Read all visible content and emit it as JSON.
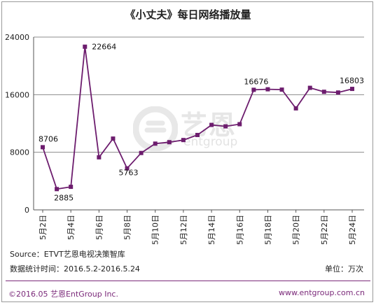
{
  "header": {
    "title": "《小丈夫》每日网络播放量"
  },
  "watermark": {
    "brand": "艺恩",
    "sub": "entgroup",
    "logo_icon": "entgroup-logo-icon"
  },
  "footer": {
    "source": "Source：ETVT艺恩电视决策智库",
    "period": "数据统计时间：2016.5.2-2016.5.24",
    "unit": "单位：万次",
    "copyright": "©2016.05 艺恩EntGroup Inc.",
    "website": "www.entgroup.com.cn"
  },
  "colors": {
    "line": "#6d1d6e",
    "marker": "#6d1d6e",
    "grid": "#8c8c8c",
    "accent": "#7b2a7a"
  },
  "chart_data": {
    "type": "line",
    "x": [
      "5月2日",
      "5月3日",
      "5月4日",
      "5月5日",
      "5月6日",
      "5月7日",
      "5月8日",
      "5月9日",
      "5月10日",
      "5月11日",
      "5月12日",
      "5月13日",
      "5月14日",
      "5月15日",
      "5月16日",
      "5月17日",
      "5月18日",
      "5月19日",
      "5月20日",
      "5月21日",
      "5月22日",
      "5月23日",
      "5月24日"
    ],
    "tick_labels": [
      "5月2日",
      "5月4日",
      "5月6日",
      "5月8日",
      "5月10日",
      "5月12日",
      "5月14日",
      "5月16日",
      "5月18日",
      "5月20日",
      "5月22日",
      "5月24日"
    ],
    "series": [
      {
        "values": [
          8706,
          2885,
          3200,
          22664,
          7300,
          9900,
          5763,
          7900,
          9200,
          9400,
          9700,
          10400,
          11800,
          11600,
          11900,
          16676,
          16750,
          16700,
          14100,
          16950,
          16400,
          16300,
          16803
        ]
      }
    ],
    "labeled_points": [
      {
        "index": 0,
        "label": "8706"
      },
      {
        "index": 1,
        "label": "2885"
      },
      {
        "index": 3,
        "label": "22664"
      },
      {
        "index": 6,
        "label": "5763"
      },
      {
        "index": 15,
        "label": "16676"
      },
      {
        "index": 22,
        "label": "16803"
      }
    ],
    "y_ticks": [
      "0",
      "8000",
      "16000",
      "24000"
    ],
    "ylim": [
      0,
      24000
    ],
    "grid": true,
    "legend": "none"
  }
}
